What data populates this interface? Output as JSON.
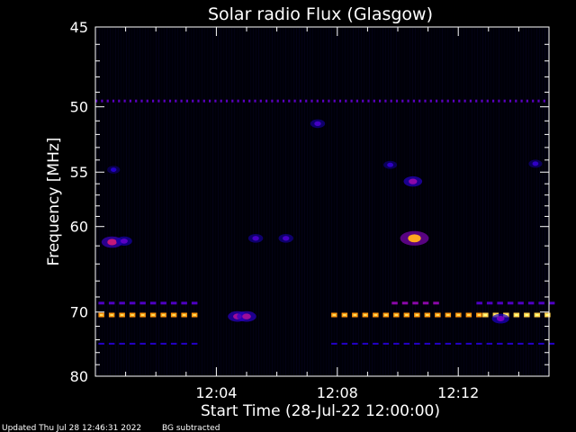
{
  "chart_data": {
    "type": "heatmap",
    "title": "Solar radio Flux (Glasgow)",
    "xlabel": "Start Time (28-Jul-22 12:00:00)",
    "ylabel": "Frequency [MHz]",
    "x_range_minutes": [
      0,
      15
    ],
    "y_range_mhz": [
      45,
      80
    ],
    "y_ticks": [
      45,
      50,
      55,
      60,
      70,
      80
    ],
    "x_ticks": [
      {
        "minute": 4,
        "label": "12:04"
      },
      {
        "minute": 8,
        "label": "12:08"
      },
      {
        "minute": 12,
        "label": "12:12"
      }
    ],
    "colormap": [
      "#000000",
      "#1a00c8",
      "#7000c0",
      "#e02060",
      "#ff8800",
      "#ffff80"
    ],
    "bands": [
      {
        "freq": 49.6,
        "start": 0.0,
        "end": 15.0,
        "intensity": 0.35,
        "dash": true
      },
      {
        "freq": 68.8,
        "start": 0.1,
        "end": 3.4,
        "intensity": 0.32,
        "dash": true
      },
      {
        "freq": 68.8,
        "start": 9.8,
        "end": 11.5,
        "intensity": 0.45,
        "dash": true
      },
      {
        "freq": 68.8,
        "start": 12.6,
        "end": 15.0,
        "intensity": 0.32,
        "dash": true
      },
      {
        "freq": 70.4,
        "start": 0.1,
        "end": 3.4,
        "intensity": 0.82,
        "dash": true
      },
      {
        "freq": 70.4,
        "start": 7.8,
        "end": 12.8,
        "intensity": 0.82,
        "dash": true
      },
      {
        "freq": 70.4,
        "start": 12.8,
        "end": 15.0,
        "intensity": 0.92,
        "dash": true
      },
      {
        "freq": 74.6,
        "start": 0.1,
        "end": 3.4,
        "intensity": 0.22,
        "dash": true
      },
      {
        "freq": 74.6,
        "start": 7.8,
        "end": 15.0,
        "intensity": 0.22,
        "dash": true
      }
    ],
    "spots": [
      {
        "minute": 0.55,
        "freq": 61.6,
        "intensity": 0.55
      },
      {
        "minute": 0.95,
        "freq": 61.5,
        "intensity": 0.35
      },
      {
        "minute": 5.3,
        "freq": 61.2,
        "intensity": 0.3
      },
      {
        "minute": 6.3,
        "freq": 61.2,
        "intensity": 0.3
      },
      {
        "minute": 10.55,
        "freq": 61.2,
        "intensity": 0.85
      },
      {
        "minute": 10.5,
        "freq": 55.8,
        "intensity": 0.45
      },
      {
        "minute": 4.7,
        "freq": 70.6,
        "intensity": 0.48
      },
      {
        "minute": 5.0,
        "freq": 70.6,
        "intensity": 0.48
      },
      {
        "minute": 7.35,
        "freq": 51.2,
        "intensity": 0.3
      },
      {
        "minute": 9.75,
        "freq": 54.4,
        "intensity": 0.25
      },
      {
        "minute": 14.55,
        "freq": 54.3,
        "intensity": 0.25
      },
      {
        "minute": 0.6,
        "freq": 54.8,
        "intensity": 0.22
      },
      {
        "minute": 13.4,
        "freq": 70.9,
        "intensity": 0.4
      }
    ]
  },
  "footer": {
    "updated": "Updated Thu Jul 28 12:46:31 2022",
    "note": "BG subtracted"
  }
}
